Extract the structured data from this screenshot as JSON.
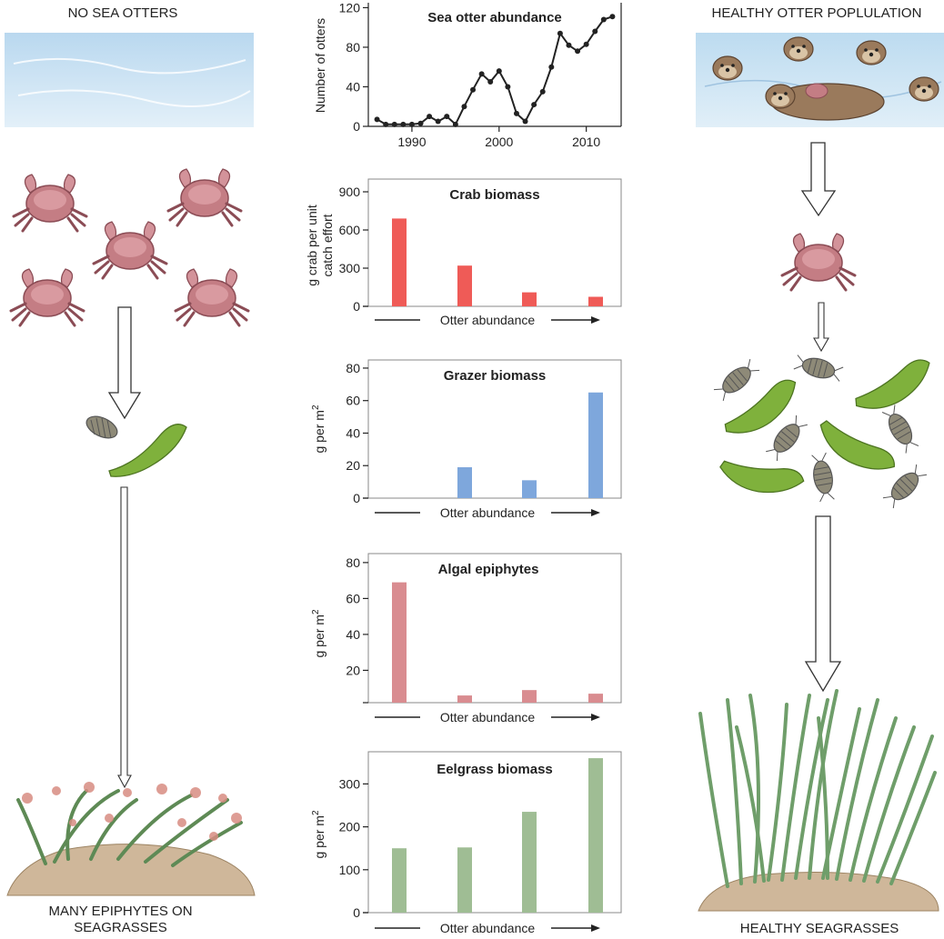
{
  "left": {
    "top_label": "NO SEA OTTERS",
    "bottom_label_1": "MANY EPIPHYTES ON",
    "bottom_label_2": "SEAGRASSES"
  },
  "right": {
    "top_label": "HEALTHY OTTER POPLULATION",
    "bottom_label": "HEALTHY SEAGRASSES"
  },
  "colors": {
    "crab": "#ef5b57",
    "grazer": "#7ea7dc",
    "algae": "#d98c90",
    "eelgrass": "#9fbd94",
    "water": "#cfe6f5",
    "seagrass": "#6f9e6a"
  },
  "chart_data": [
    {
      "type": "line",
      "title": "Sea otter abundance",
      "ylabel": "Number of otters",
      "xlabel": "",
      "xlim": [
        1985,
        2014
      ],
      "ylim": [
        0,
        125
      ],
      "xticks": [
        1990,
        2000,
        2010
      ],
      "yticks": [
        0,
        40,
        80,
        120
      ],
      "x": [
        1986,
        1987,
        1988,
        1989,
        1990,
        1991,
        1992,
        1993,
        1994,
        1995,
        1996,
        1997,
        1998,
        1999,
        2000,
        2001,
        2002,
        2003,
        2004,
        2005,
        2006,
        2007,
        2008,
        2009,
        2010,
        2011,
        2012,
        2013
      ],
      "y": [
        7,
        2,
        2,
        2,
        2,
        3,
        10,
        5,
        10,
        2,
        20,
        37,
        53,
        45,
        56,
        40,
        13,
        5,
        22,
        35,
        60,
        94,
        82,
        76,
        83,
        96,
        108,
        111
      ]
    },
    {
      "type": "bar",
      "title": "Crab biomass",
      "ylabel_1": "g crab per unit",
      "ylabel_2": "catch effort",
      "xlabel": "Otter abundance",
      "categories": [
        "1",
        "2",
        "3",
        "4"
      ],
      "values": [
        690,
        320,
        110,
        75
      ],
      "ylim": [
        0,
        1000
      ],
      "yticks": [
        0,
        300,
        600,
        900
      ]
    },
    {
      "type": "bar",
      "title": "Grazer biomass",
      "ylabel": "g per m",
      "ylabel_sup": "2",
      "xlabel": "Otter abundance",
      "categories": [
        "1",
        "2",
        "3",
        "4"
      ],
      "values": [
        0,
        19,
        11,
        65
      ],
      "ylim": [
        0,
        85
      ],
      "yticks": [
        0,
        20,
        40,
        60,
        80
      ]
    },
    {
      "type": "bar",
      "title": "Algal epiphytes",
      "ylabel": "g per m",
      "ylabel_sup": "2",
      "xlabel": "Otter abundance",
      "categories": [
        "1",
        "2",
        "3",
        "4"
      ],
      "values": [
        69,
        6,
        9,
        7
      ],
      "ylim": [
        2,
        85
      ],
      "yticks": [
        20,
        40,
        60,
        80
      ]
    },
    {
      "type": "bar",
      "title": "Eelgrass biomass",
      "ylabel": "g per m",
      "ylabel_sup": "2",
      "xlabel": "Otter abundance",
      "categories": [
        "1",
        "2",
        "3",
        "4"
      ],
      "values": [
        150,
        152,
        235,
        360
      ],
      "ylim": [
        0,
        375
      ],
      "yticks": [
        0,
        100,
        200,
        300
      ]
    }
  ]
}
